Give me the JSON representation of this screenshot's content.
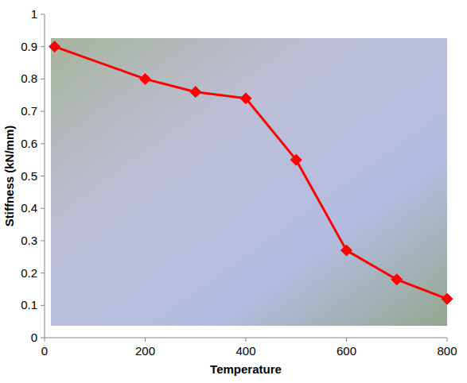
{
  "chart_data": {
    "type": "line",
    "x_label": "Temperature",
    "y_label": "Stiffness (kN/mm)",
    "x": [
      20,
      200,
      300,
      400,
      500,
      600,
      700,
      800
    ],
    "values": [
      0.9,
      0.8,
      0.76,
      0.74,
      0.55,
      0.27,
      0.18,
      0.12
    ],
    "color": "#ff0000",
    "marker": "diamond",
    "line_style": "solid",
    "xlim": [
      0,
      800
    ],
    "xticks": [
      0,
      200,
      400,
      600,
      800
    ],
    "ylim": [
      0,
      1
    ],
    "yticks": [
      0,
      0.1,
      0.2,
      0.3,
      0.4,
      0.5,
      0.6,
      0.7,
      0.8,
      0.9,
      1
    ],
    "grid": false
  }
}
